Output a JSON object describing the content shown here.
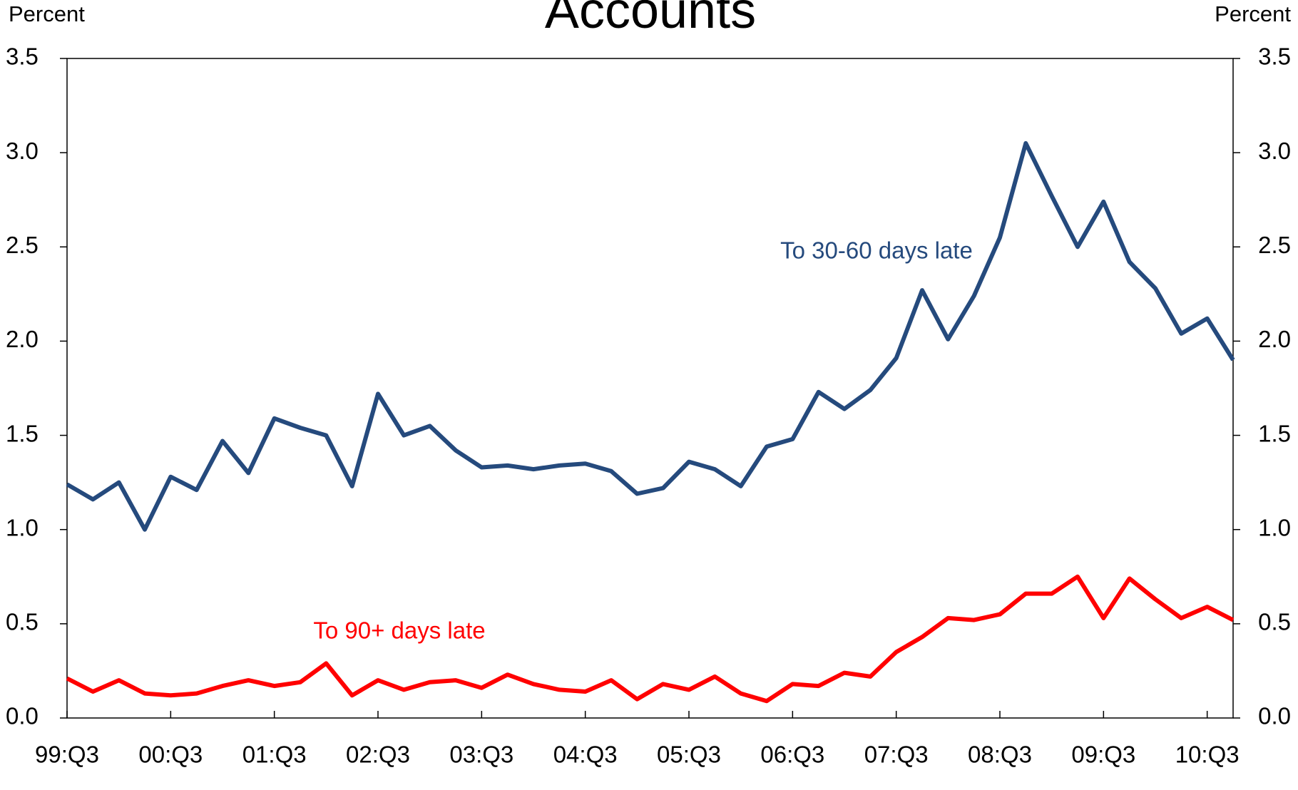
{
  "chart_data": {
    "type": "line",
    "title": "Accounts",
    "y_label": "Percent",
    "y2_label": "Percent",
    "categories": [
      "99:Q3",
      null,
      null,
      null,
      "00:Q3",
      null,
      null,
      null,
      "01:Q3",
      null,
      null,
      null,
      "02:Q3",
      null,
      null,
      null,
      "03:Q3",
      null,
      null,
      null,
      "04:Q3",
      null,
      null,
      null,
      "05:Q3",
      null,
      null,
      null,
      "06:Q3",
      null,
      null,
      null,
      "07:Q3",
      null,
      null,
      null,
      "08:Q3",
      null,
      null,
      null,
      "09:Q3",
      null,
      null,
      null,
      "10:Q3",
      null
    ],
    "series": [
      {
        "name": "To 30-60 days late",
        "color": "#254a7d",
        "values": [
          1.24,
          1.16,
          1.25,
          1.0,
          1.28,
          1.21,
          1.47,
          1.3,
          1.59,
          1.54,
          1.5,
          1.23,
          1.72,
          1.5,
          1.55,
          1.42,
          1.33,
          1.34,
          1.32,
          1.34,
          1.35,
          1.31,
          1.19,
          1.22,
          1.36,
          1.32,
          1.23,
          1.44,
          1.48,
          1.73,
          1.64,
          1.74,
          1.91,
          2.27,
          2.01,
          2.24,
          2.55,
          3.05,
          2.77,
          2.5,
          2.74,
          2.42,
          2.28,
          2.04,
          2.12,
          1.9
        ]
      },
      {
        "name": "To 90+ days late",
        "color": "#ff0000",
        "values": [
          0.21,
          0.14,
          0.2,
          0.13,
          0.12,
          0.13,
          0.17,
          0.2,
          0.17,
          0.19,
          0.29,
          0.12,
          0.2,
          0.15,
          0.19,
          0.2,
          0.16,
          0.23,
          0.18,
          0.15,
          0.14,
          0.2,
          0.1,
          0.18,
          0.15,
          0.22,
          0.13,
          0.09,
          0.18,
          0.17,
          0.24,
          0.22,
          0.35,
          0.43,
          0.53,
          0.52,
          0.55,
          0.66,
          0.66,
          0.75,
          0.53,
          0.74,
          0.63,
          0.53,
          0.59,
          0.52
        ]
      }
    ],
    "ylim": [
      0,
      3.5
    ],
    "yticks": [
      {
        "value": 0,
        "label": "0.0"
      },
      0.5,
      {
        "value": 1,
        "label": "1.0"
      },
      1.5,
      {
        "value": 2,
        "label": "2.0"
      },
      2.5,
      {
        "value": 3,
        "label": "3.0"
      },
      3.5
    ],
    "y2lim": [
      0,
      3.5
    ],
    "y2ticks": [
      {
        "value": 0,
        "label": "0.0"
      },
      0.5,
      {
        "value": 1,
        "label": "1.0"
      },
      1.5,
      {
        "value": 2,
        "label": "2.0"
      },
      2.5,
      {
        "value": 3,
        "label": "3.0"
      },
      3.5
    ],
    "grid": false
  }
}
